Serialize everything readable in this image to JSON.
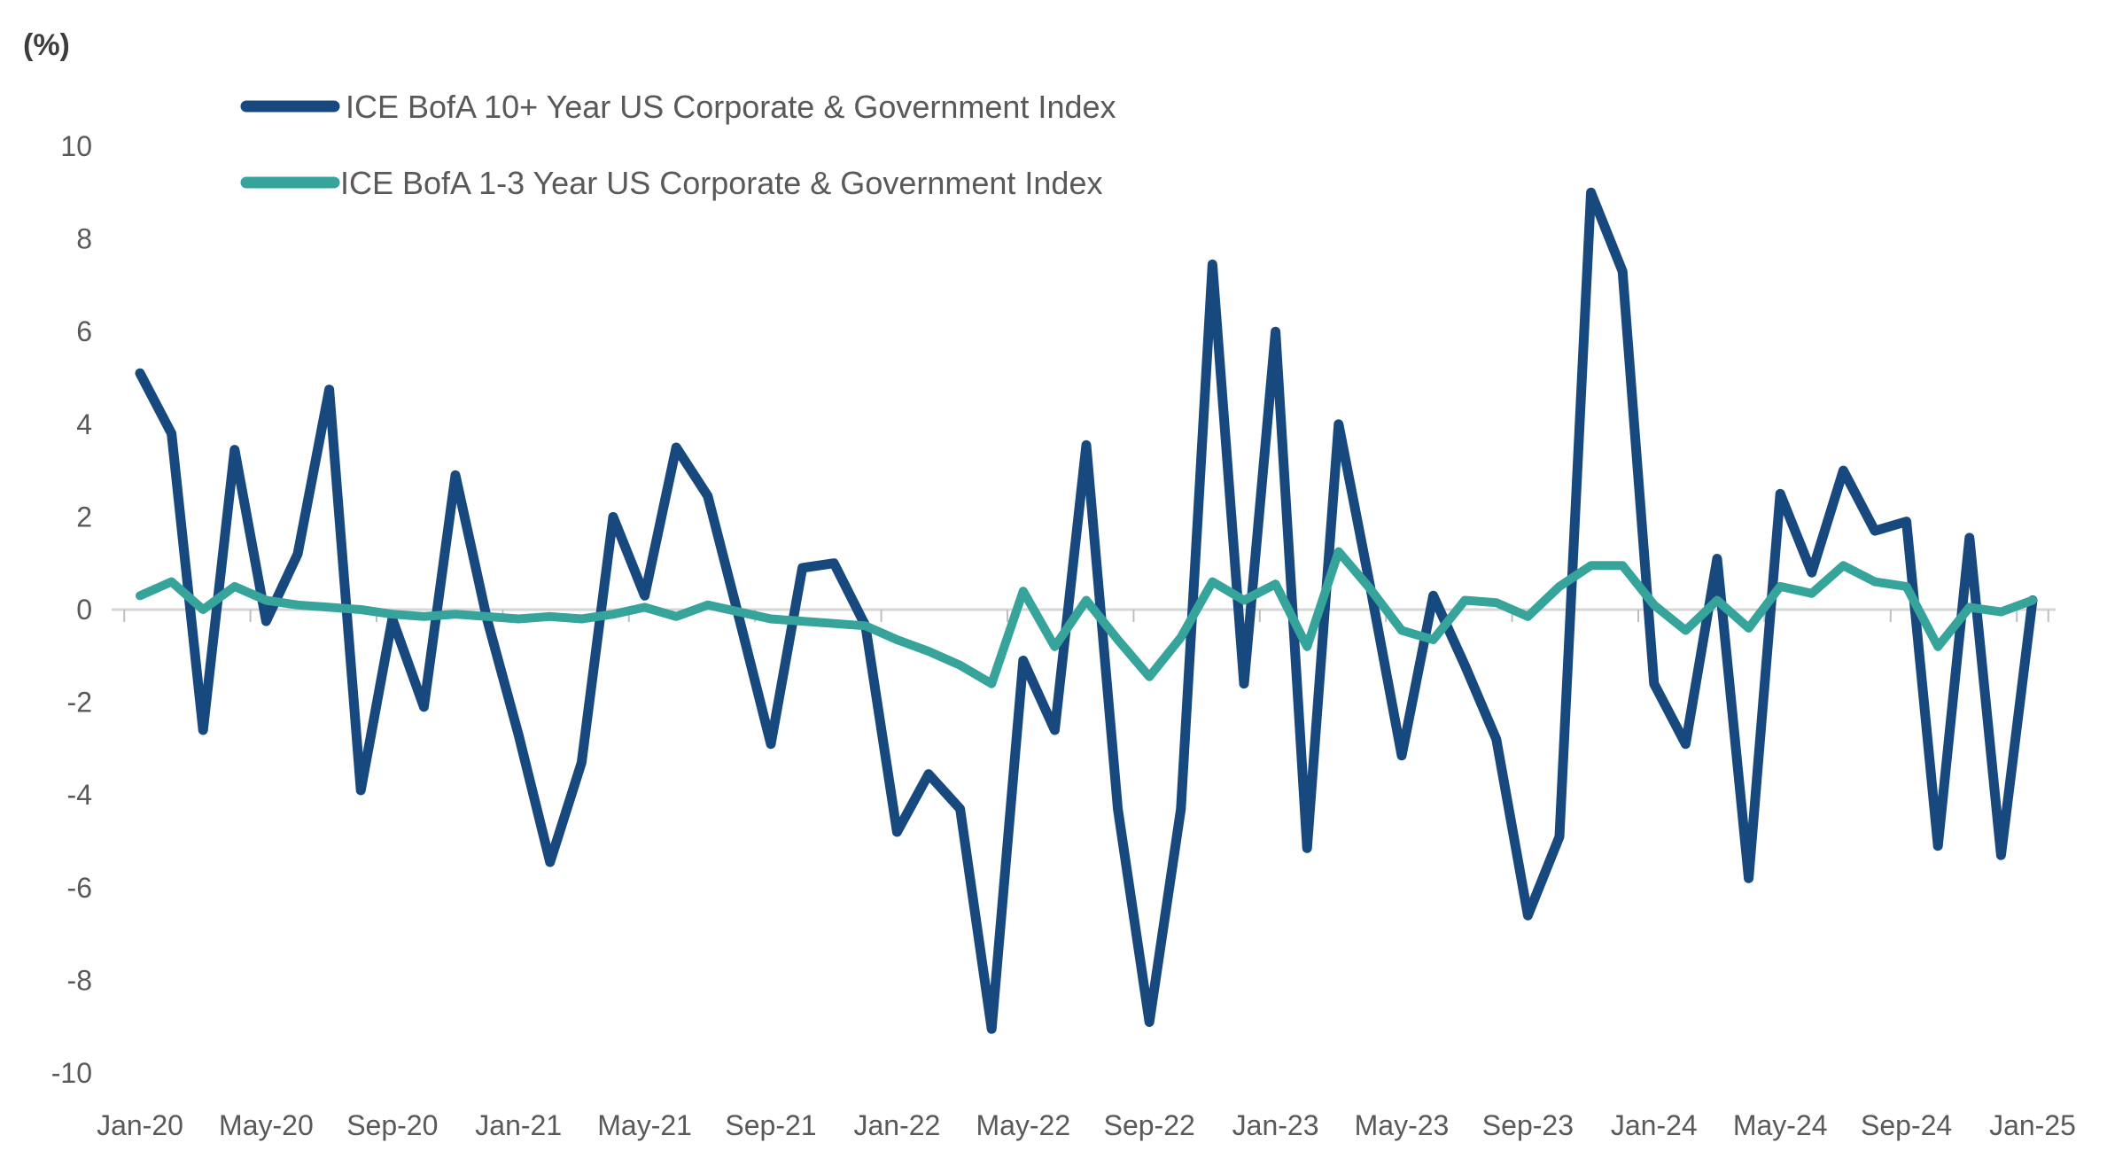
{
  "chart_data": {
    "type": "line",
    "title": "",
    "ylabel": "(%)",
    "xlabel": "",
    "ylim": [
      -10,
      10
    ],
    "ytick_step": 2,
    "grid": "zero-line-only",
    "legend_position": "top-left",
    "background": "#ffffff",
    "zero_line_color": "#d6d6d6",
    "tick_color": "#bfbfbf",
    "axis_text_color": "#595959",
    "months": [
      "Jan-20",
      "Feb-20",
      "Mar-20",
      "Apr-20",
      "May-20",
      "Jun-20",
      "Jul-20",
      "Aug-20",
      "Sep-20",
      "Oct-20",
      "Nov-20",
      "Dec-20",
      "Jan-21",
      "Feb-21",
      "Mar-21",
      "Apr-21",
      "May-21",
      "Jun-21",
      "Jul-21",
      "Aug-21",
      "Sep-21",
      "Oct-21",
      "Nov-21",
      "Dec-21",
      "Jan-22",
      "Feb-22",
      "Mar-22",
      "Apr-22",
      "May-22",
      "Jun-22",
      "Jul-22",
      "Aug-22",
      "Sep-22",
      "Oct-22",
      "Nov-22",
      "Dec-22",
      "Jan-23",
      "Feb-23",
      "Mar-23",
      "Apr-23",
      "May-23",
      "Jun-23",
      "Jul-23",
      "Aug-23",
      "Sep-23",
      "Oct-23",
      "Nov-23",
      "Dec-23",
      "Jan-24",
      "Feb-24",
      "Mar-24",
      "Apr-24",
      "May-24",
      "Jun-24",
      "Jul-24",
      "Aug-24",
      "Sep-24",
      "Oct-24",
      "Nov-24",
      "Dec-24",
      "Jan-25"
    ],
    "x_tick_labels": [
      "Jan-20",
      "May-20",
      "Sep-20",
      "Jan-21",
      "May-21",
      "Sep-21",
      "Jan-22",
      "May-22",
      "Sep-22",
      "Jan-23",
      "May-23",
      "Sep-23",
      "Jan-24",
      "May-24",
      "Sep-24",
      "Jan-25"
    ],
    "y_tick_labels": [
      "10",
      "8",
      "6",
      "4",
      "2",
      "0",
      "-2",
      "-4",
      "-6",
      "-8",
      "-10"
    ],
    "series": [
      {
        "name": "ICE BofA 10+ Year US Corporate & Government Index",
        "color": "#17497f",
        "values": [
          5.1,
          3.8,
          -2.6,
          3.45,
          -0.25,
          1.2,
          4.75,
          -3.9,
          -0.2,
          -2.1,
          2.9,
          -0.2,
          -2.7,
          -5.45,
          -3.3,
          2.0,
          0.3,
          3.5,
          2.45,
          -0.2,
          -2.9,
          0.9,
          1.0,
          -0.35,
          -4.8,
          -3.55,
          -4.3,
          -9.05,
          -1.1,
          -2.6,
          3.55,
          -4.3,
          -8.9,
          -4.3,
          7.45,
          -1.6,
          6.0,
          -5.15,
          4.0,
          0.5,
          -3.15,
          0.3,
          -1.2,
          -2.8,
          -6.6,
          -4.9,
          9.0,
          7.3,
          -1.6,
          -2.9,
          1.1,
          -5.8,
          2.5,
          0.8,
          3.0,
          1.7,
          1.9,
          -5.1,
          1.55,
          -5.3,
          0.2
        ]
      },
      {
        "name": "ICE BofA 1-3 Year US Corporate & Government Index",
        "color": "#36a49a",
        "values": [
          0.3,
          0.6,
          0.0,
          0.5,
          0.2,
          0.1,
          0.05,
          0.0,
          -0.1,
          -0.15,
          -0.1,
          -0.15,
          -0.2,
          -0.15,
          -0.2,
          -0.1,
          0.05,
          -0.15,
          0.1,
          -0.05,
          -0.2,
          -0.25,
          -0.3,
          -0.35,
          -0.65,
          -0.9,
          -1.2,
          -1.6,
          0.4,
          -0.8,
          0.2,
          -0.65,
          -1.45,
          -0.6,
          0.6,
          0.2,
          0.55,
          -0.8,
          1.25,
          0.45,
          -0.45,
          -0.65,
          0.2,
          0.15,
          -0.15,
          0.5,
          0.95,
          0.95,
          0.1,
          -0.45,
          0.2,
          -0.4,
          0.5,
          0.35,
          0.95,
          0.6,
          0.5,
          -0.8,
          0.05,
          -0.05,
          0.2
        ]
      }
    ]
  }
}
